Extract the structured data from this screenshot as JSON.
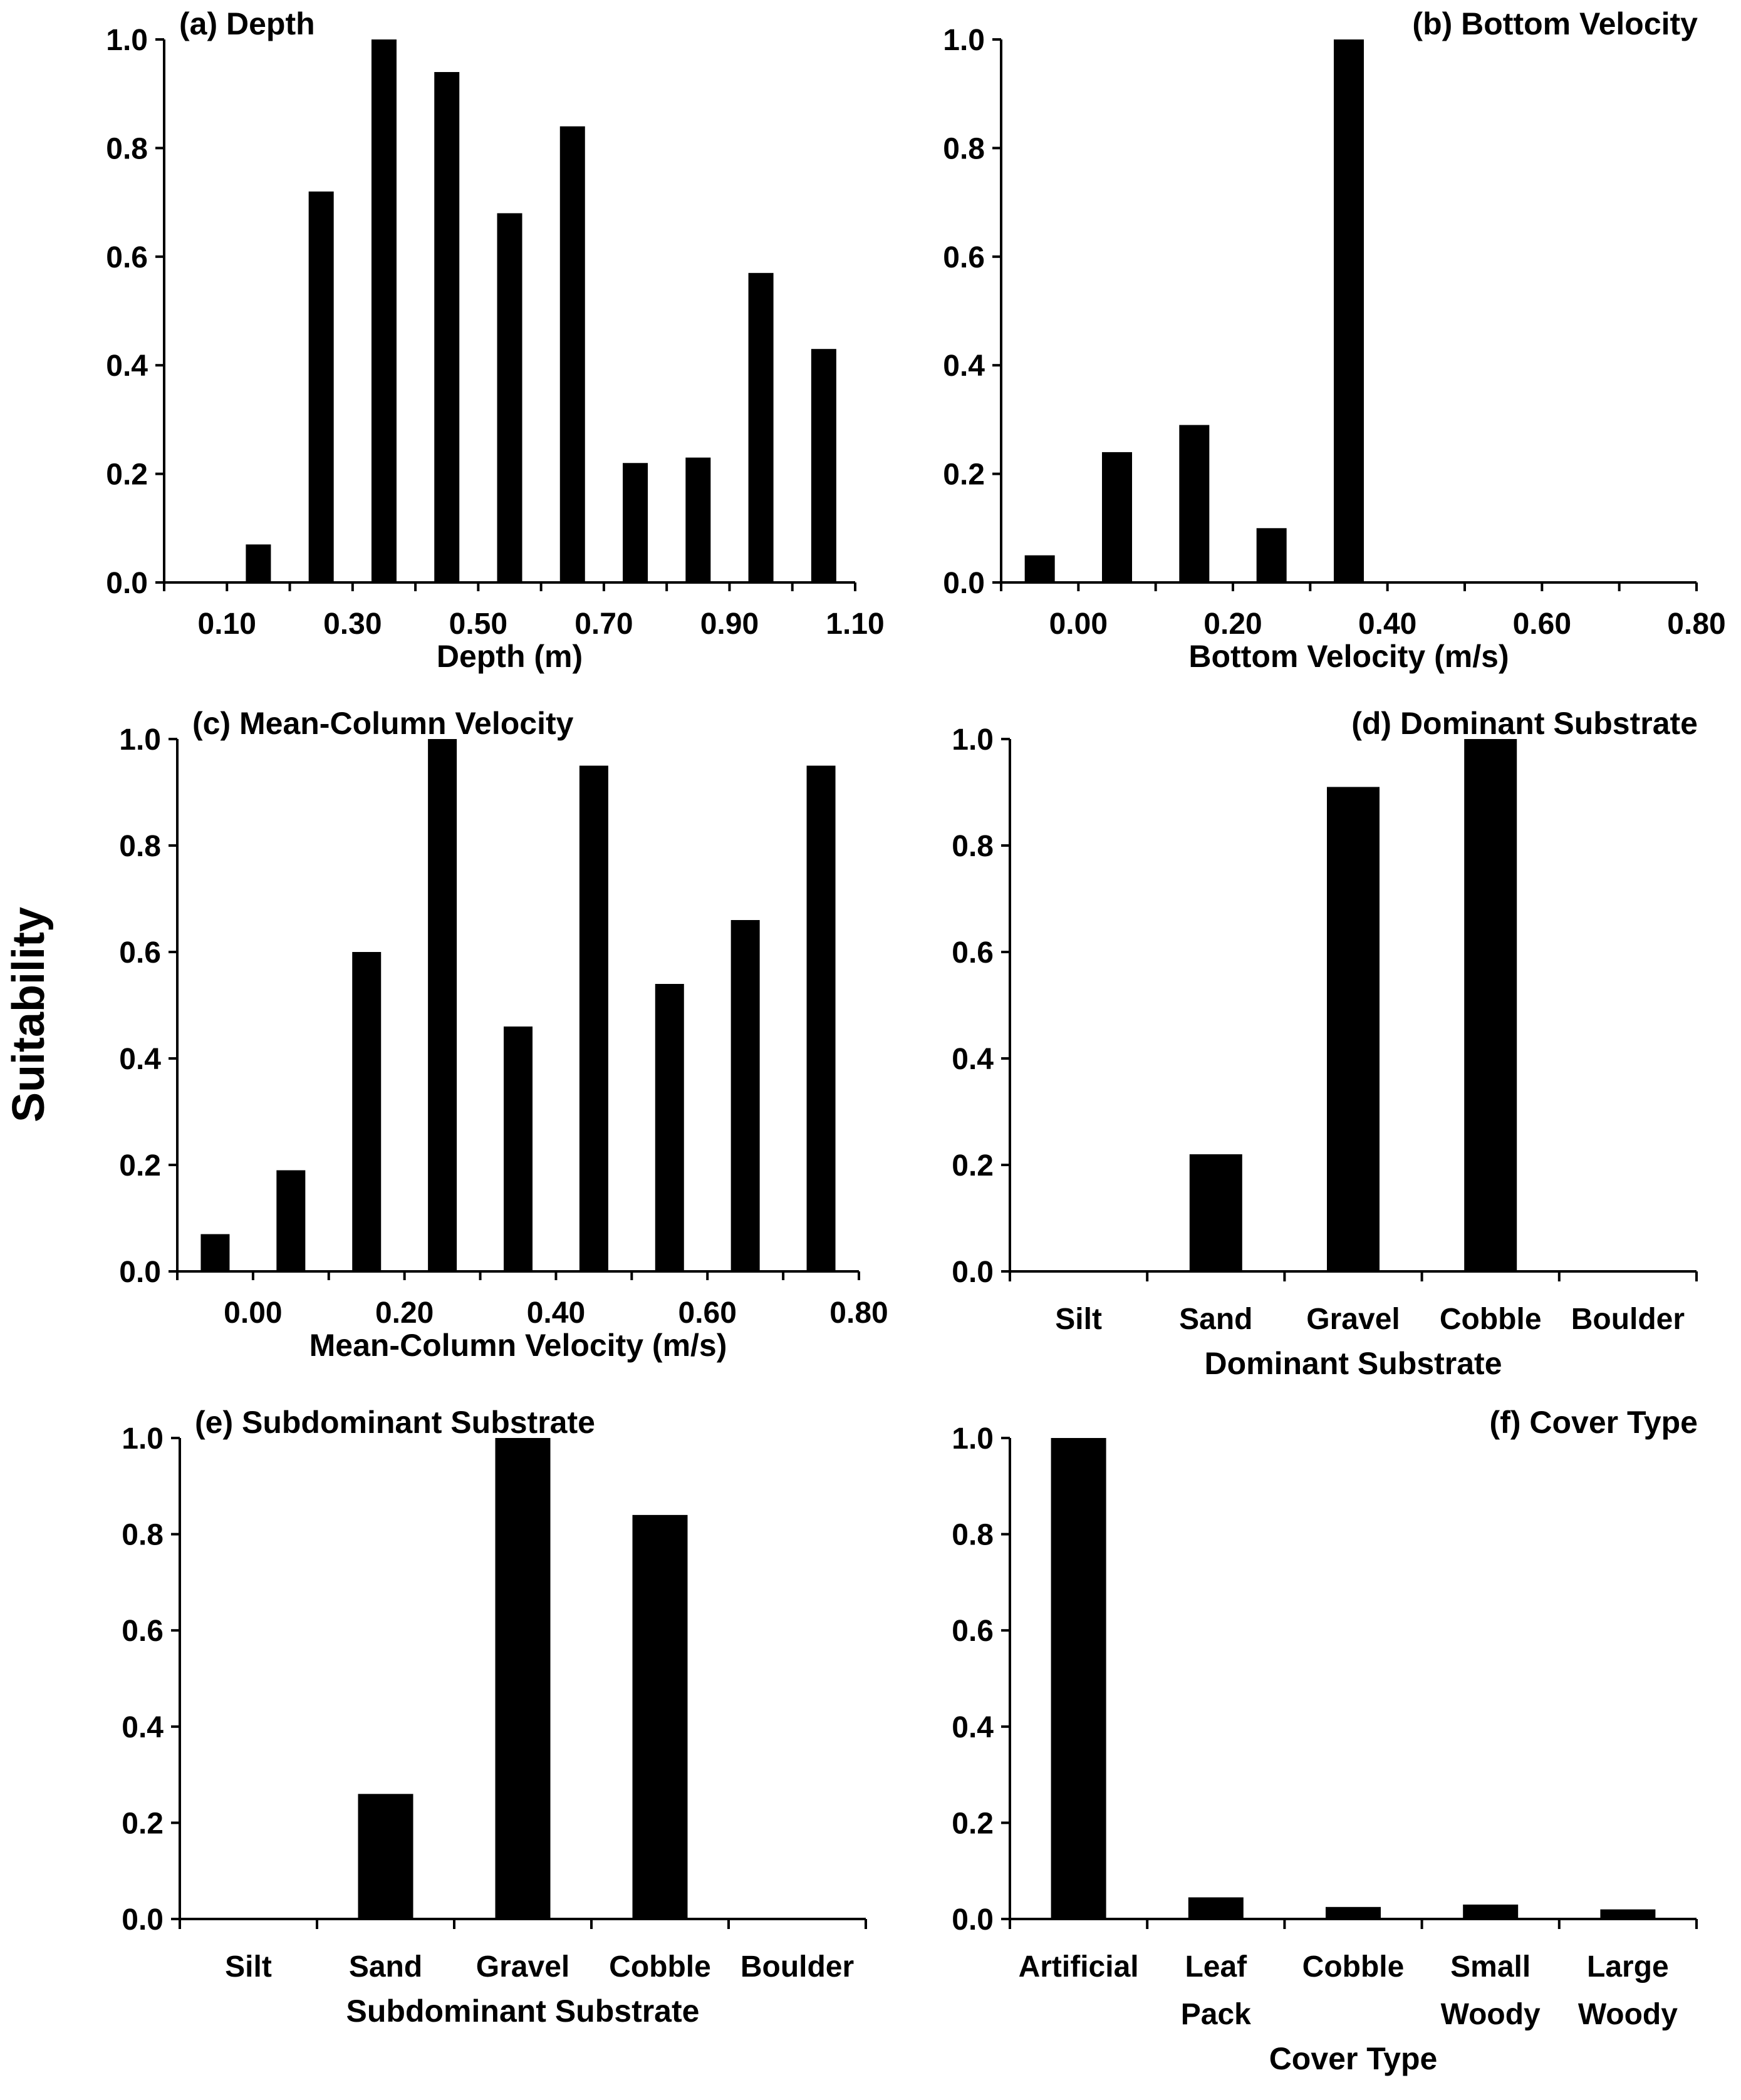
{
  "figure": {
    "y_axis_label": "Suitability",
    "colors": {
      "bar": "#000000",
      "axis": "#000000",
      "background": "#ffffff"
    }
  },
  "chart_data": [
    {
      "id": "a",
      "type": "bar",
      "title": "(a) Depth",
      "title_position": "top-left",
      "xlabel": "Depth (m)",
      "ylabel": "Suitability",
      "x": [
        0.05,
        0.15,
        0.25,
        0.35,
        0.45,
        0.55,
        0.65,
        0.75,
        0.85,
        0.95,
        1.05
      ],
      "values": [
        0,
        0.07,
        0.72,
        1.0,
        0.94,
        0.68,
        0.84,
        0.22,
        0.23,
        0.57,
        0.43
      ],
      "xlim": [
        0.0,
        1.1
      ],
      "xticks": [
        0.1,
        0.3,
        0.5,
        0.7,
        0.9,
        1.1
      ],
      "xtick_labels": [
        "0.10",
        "0.30",
        "0.50",
        "0.70",
        "0.90",
        "1.10"
      ],
      "ylim": [
        0,
        1
      ],
      "yticks": [
        0,
        0.2,
        0.4,
        0.6,
        0.8,
        1.0
      ],
      "ytick_labels": [
        "0.0",
        "0.2",
        "0.4",
        "0.6",
        "0.8",
        "1.0"
      ]
    },
    {
      "id": "b",
      "type": "bar",
      "title": "(b) Bottom Velocity",
      "title_position": "top-right",
      "xlabel": "Bottom Velocity (m/s)",
      "ylabel": "Suitability",
      "x": [
        -0.05,
        0.05,
        0.15,
        0.25,
        0.35
      ],
      "values": [
        0.05,
        0.24,
        0.29,
        0.1,
        1.0
      ],
      "xlim": [
        -0.1,
        0.8
      ],
      "xticks": [
        0.0,
        0.2,
        0.4,
        0.6,
        0.8
      ],
      "xtick_labels": [
        "0.00",
        "0.20",
        "0.40",
        "0.60",
        "0.80"
      ],
      "ylim": [
        0,
        1
      ],
      "yticks": [
        0,
        0.2,
        0.4,
        0.6,
        0.8,
        1.0
      ],
      "ytick_labels": [
        "0.0",
        "0.2",
        "0.4",
        "0.6",
        "0.8",
        "1.0"
      ]
    },
    {
      "id": "c",
      "type": "bar",
      "title": "(c) Mean-Column Velocity",
      "title_position": "top-left",
      "xlabel": "Mean-Column Velocity (m/s)",
      "ylabel": "Suitability",
      "x": [
        -0.05,
        0.05,
        0.15,
        0.25,
        0.35,
        0.45,
        0.55,
        0.65,
        0.75
      ],
      "values": [
        0.07,
        0.19,
        0.6,
        1.0,
        0.46,
        0.95,
        0.54,
        0.66,
        0.95
      ],
      "xlim": [
        -0.1,
        0.8
      ],
      "xticks": [
        0.0,
        0.2,
        0.4,
        0.6,
        0.8
      ],
      "xtick_labels": [
        "0.00",
        "0.20",
        "0.40",
        "0.60",
        "0.80"
      ],
      "ylim": [
        0,
        1
      ],
      "yticks": [
        0,
        0.2,
        0.4,
        0.6,
        0.8,
        1.0
      ],
      "ytick_labels": [
        "0.0",
        "0.2",
        "0.4",
        "0.6",
        "0.8",
        "1.0"
      ]
    },
    {
      "id": "d",
      "type": "bar",
      "title": "(d) Dominant Substrate",
      "title_position": "top-right",
      "xlabel": "Dominant Substrate",
      "ylabel": "Suitability",
      "categories": [
        [
          "Silt"
        ],
        [
          "Sand"
        ],
        [
          "Gravel"
        ],
        [
          "Cobble"
        ],
        [
          "Boulder"
        ]
      ],
      "values": [
        0,
        0.22,
        0.91,
        1.0,
        0
      ],
      "ylim": [
        0,
        1
      ],
      "yticks": [
        0,
        0.2,
        0.4,
        0.6,
        0.8,
        1.0
      ],
      "ytick_labels": [
        "0.0",
        "0.2",
        "0.4",
        "0.6",
        "0.8",
        "1.0"
      ]
    },
    {
      "id": "e",
      "type": "bar",
      "title": "(e) Subdominant Substrate",
      "title_position": "top-left",
      "xlabel": "Subdominant Substrate",
      "ylabel": "Suitability",
      "categories": [
        [
          "Silt"
        ],
        [
          "Sand"
        ],
        [
          "Gravel"
        ],
        [
          "Cobble"
        ],
        [
          "Boulder"
        ]
      ],
      "values": [
        0,
        0.26,
        1.0,
        0.84,
        0
      ],
      "ylim": [
        0,
        1
      ],
      "yticks": [
        0,
        0.2,
        0.4,
        0.6,
        0.8,
        1.0
      ],
      "ytick_labels": [
        "0.0",
        "0.2",
        "0.4",
        "0.6",
        "0.8",
        "1.0"
      ]
    },
    {
      "id": "f",
      "type": "bar",
      "title": "(f) Cover Type",
      "title_position": "top-right",
      "xlabel": "Cover Type",
      "ylabel": "Suitability",
      "categories": [
        [
          "Artificial"
        ],
        [
          "Leaf",
          "Pack"
        ],
        [
          "Cobble"
        ],
        [
          "Small",
          "Woody"
        ],
        [
          "Large",
          "Woody"
        ]
      ],
      "values": [
        1.0,
        0.045,
        0.025,
        0.03,
        0.02
      ],
      "ylim": [
        0,
        1
      ],
      "yticks": [
        0,
        0.2,
        0.4,
        0.6,
        0.8,
        1.0
      ],
      "ytick_labels": [
        "0.0",
        "0.2",
        "0.4",
        "0.6",
        "0.8",
        "1.0"
      ]
    }
  ]
}
